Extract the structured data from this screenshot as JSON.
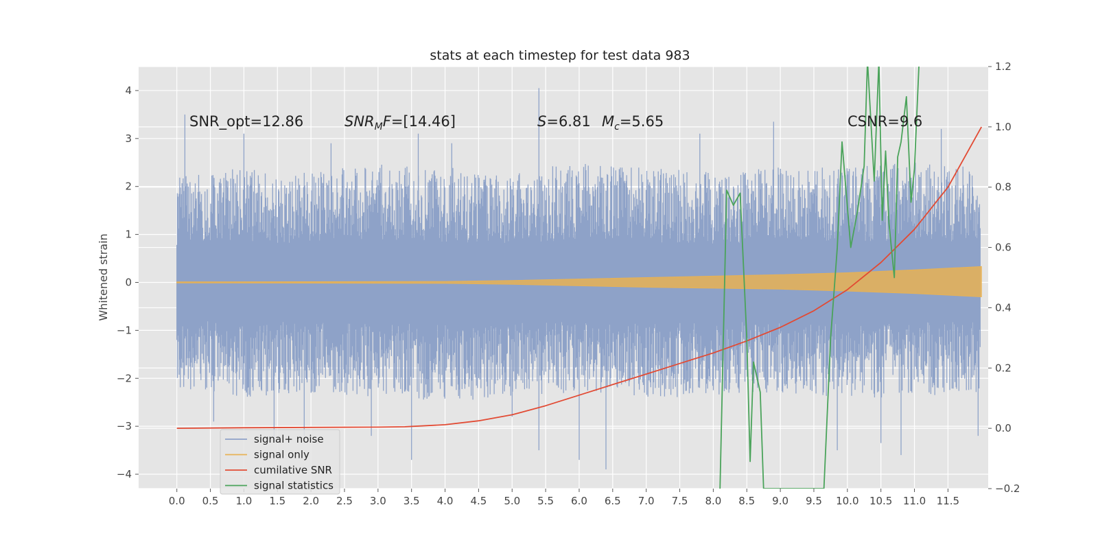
{
  "chart_data": {
    "type": "line",
    "title": "stats at each timestep for test data 983",
    "ylabel": "Whitened strain",
    "y2label": "",
    "xlim": [
      -0.57,
      12.1
    ],
    "ylim": [
      -4.3,
      4.5
    ],
    "y2lim": [
      -0.2,
      1.2
    ],
    "x_ticks": [
      "0.0",
      "0.5",
      "1.0",
      "1.5",
      "2.0",
      "2.5",
      "3.0",
      "3.5",
      "4.0",
      "4.5",
      "5.0",
      "5.5",
      "6.0",
      "6.5",
      "7.0",
      "7.5",
      "8.0",
      "8.5",
      "9.0",
      "9.5",
      "10.0",
      "10.5",
      "11.0",
      "11.5"
    ],
    "y_ticks": [
      "−4",
      "−3",
      "−2",
      "−1",
      "0",
      "1",
      "2",
      "3",
      "4"
    ],
    "y2_ticks": [
      "−0.2",
      "0.0",
      "0.2",
      "0.4",
      "0.6",
      "0.8",
      "1.0",
      "1.2"
    ],
    "grid": true,
    "legend_position": "lower-left",
    "annotations": {
      "snr_opt": "SNR_opt=12.86",
      "snr_mf_main": "SNR",
      "snr_mf_sub": "M",
      "snr_mf_f": "F",
      "snr_mf_value": "=[14.46]",
      "s_label": "S",
      "s_value": "=6.81",
      "mc_main": "M",
      "mc_sub": "c",
      "mc_value": "=5.65",
      "csnr": "CSNR=9.6"
    },
    "colors": {
      "signal_noise": "#8ea2c8",
      "signal_only": "#e8b254",
      "cumulative_snr": "#e24a33",
      "signal_statistics": "#4aa35a",
      "background": "#e5e5e5",
      "grid": "#ffffff"
    },
    "series": [
      {
        "name": "signal+ noise",
        "axis": "left",
        "envelope": {
          "x": [
            0.0,
            1.0,
            2.0,
            3.0,
            4.0,
            5.0,
            6.0,
            7.0,
            8.0,
            9.0,
            10.0,
            11.0,
            12.0
          ],
          "upper": [
            2.2,
            2.4,
            2.3,
            2.5,
            2.4,
            2.3,
            2.5,
            2.4,
            2.3,
            2.4,
            2.4,
            2.5,
            2.4
          ],
          "lower": [
            -2.2,
            -2.4,
            -2.3,
            -2.4,
            -2.5,
            -2.4,
            -2.3,
            -2.4,
            -2.4,
            -2.3,
            -2.4,
            -2.4,
            -2.3
          ]
        },
        "peaks": [
          {
            "x": 0.12,
            "y": 3.5
          },
          {
            "x": 0.55,
            "y": -2.9
          },
          {
            "x": 1.0,
            "y": 3.1
          },
          {
            "x": 1.45,
            "y": -3.3
          },
          {
            "x": 1.9,
            "y": -3.2
          },
          {
            "x": 2.3,
            "y": 2.9
          },
          {
            "x": 2.9,
            "y": -3.2
          },
          {
            "x": 3.5,
            "y": -3.7
          },
          {
            "x": 3.6,
            "y": 3.1
          },
          {
            "x": 4.1,
            "y": 2.9
          },
          {
            "x": 5.0,
            "y": -2.8
          },
          {
            "x": 5.4,
            "y": 4.05
          },
          {
            "x": 5.4,
            "y": -3.5
          },
          {
            "x": 6.0,
            "y": -3.7
          },
          {
            "x": 6.4,
            "y": -3.9
          },
          {
            "x": 7.8,
            "y": 3.1
          },
          {
            "x": 8.9,
            "y": 3.35
          },
          {
            "x": 9.85,
            "y": -3.5
          },
          {
            "x": 10.5,
            "y": -3.35
          },
          {
            "x": 10.8,
            "y": -3.6
          },
          {
            "x": 11.4,
            "y": 3.2
          },
          {
            "x": 11.95,
            "y": -3.2
          }
        ]
      },
      {
        "name": "signal only",
        "axis": "left",
        "envelope": {
          "x": [
            0.0,
            4.0,
            5.0,
            6.0,
            7.0,
            8.0,
            9.0,
            10.0,
            11.0,
            12.0
          ],
          "upper": [
            0.01,
            0.02,
            0.04,
            0.07,
            0.1,
            0.13,
            0.16,
            0.2,
            0.26,
            0.33
          ],
          "lower": [
            -0.01,
            -0.02,
            -0.04,
            -0.07,
            -0.1,
            -0.12,
            -0.14,
            -0.18,
            -0.23,
            -0.3
          ]
        }
      },
      {
        "name": "cumilative SNR",
        "axis": "right",
        "x": [
          0.0,
          1.0,
          2.0,
          3.0,
          3.4,
          4.0,
          4.5,
          5.0,
          5.5,
          6.0,
          6.5,
          7.0,
          7.5,
          8.0,
          8.5,
          9.0,
          9.5,
          10.0,
          10.5,
          11.0,
          11.5,
          12.0
        ],
        "values": [
          0.0,
          0.002,
          0.003,
          0.004,
          0.005,
          0.012,
          0.025,
          0.045,
          0.075,
          0.11,
          0.145,
          0.18,
          0.215,
          0.25,
          0.29,
          0.335,
          0.39,
          0.46,
          0.55,
          0.66,
          0.8,
          1.0
        ]
      },
      {
        "name": "signal statistics",
        "axis": "right",
        "x": [
          8.1,
          8.2,
          8.3,
          8.4,
          8.5,
          8.55,
          8.6,
          8.7,
          8.75,
          9.65,
          9.75,
          9.85,
          9.92,
          10.05,
          10.15,
          10.25,
          10.3,
          10.4,
          10.47,
          10.52,
          10.57,
          10.62,
          10.7,
          10.75,
          10.8,
          10.88,
          10.95,
          11.0,
          11.07,
          11.12
        ],
        "values": [
          -0.2,
          0.79,
          0.74,
          0.78,
          0.3,
          -0.11,
          0.22,
          0.12,
          -0.2,
          -0.2,
          0.3,
          0.6,
          0.95,
          0.6,
          0.72,
          0.87,
          1.22,
          0.82,
          1.22,
          0.69,
          0.92,
          0.68,
          0.5,
          0.9,
          0.95,
          1.1,
          0.75,
          0.86,
          1.22,
          1.22
        ]
      }
    ]
  }
}
